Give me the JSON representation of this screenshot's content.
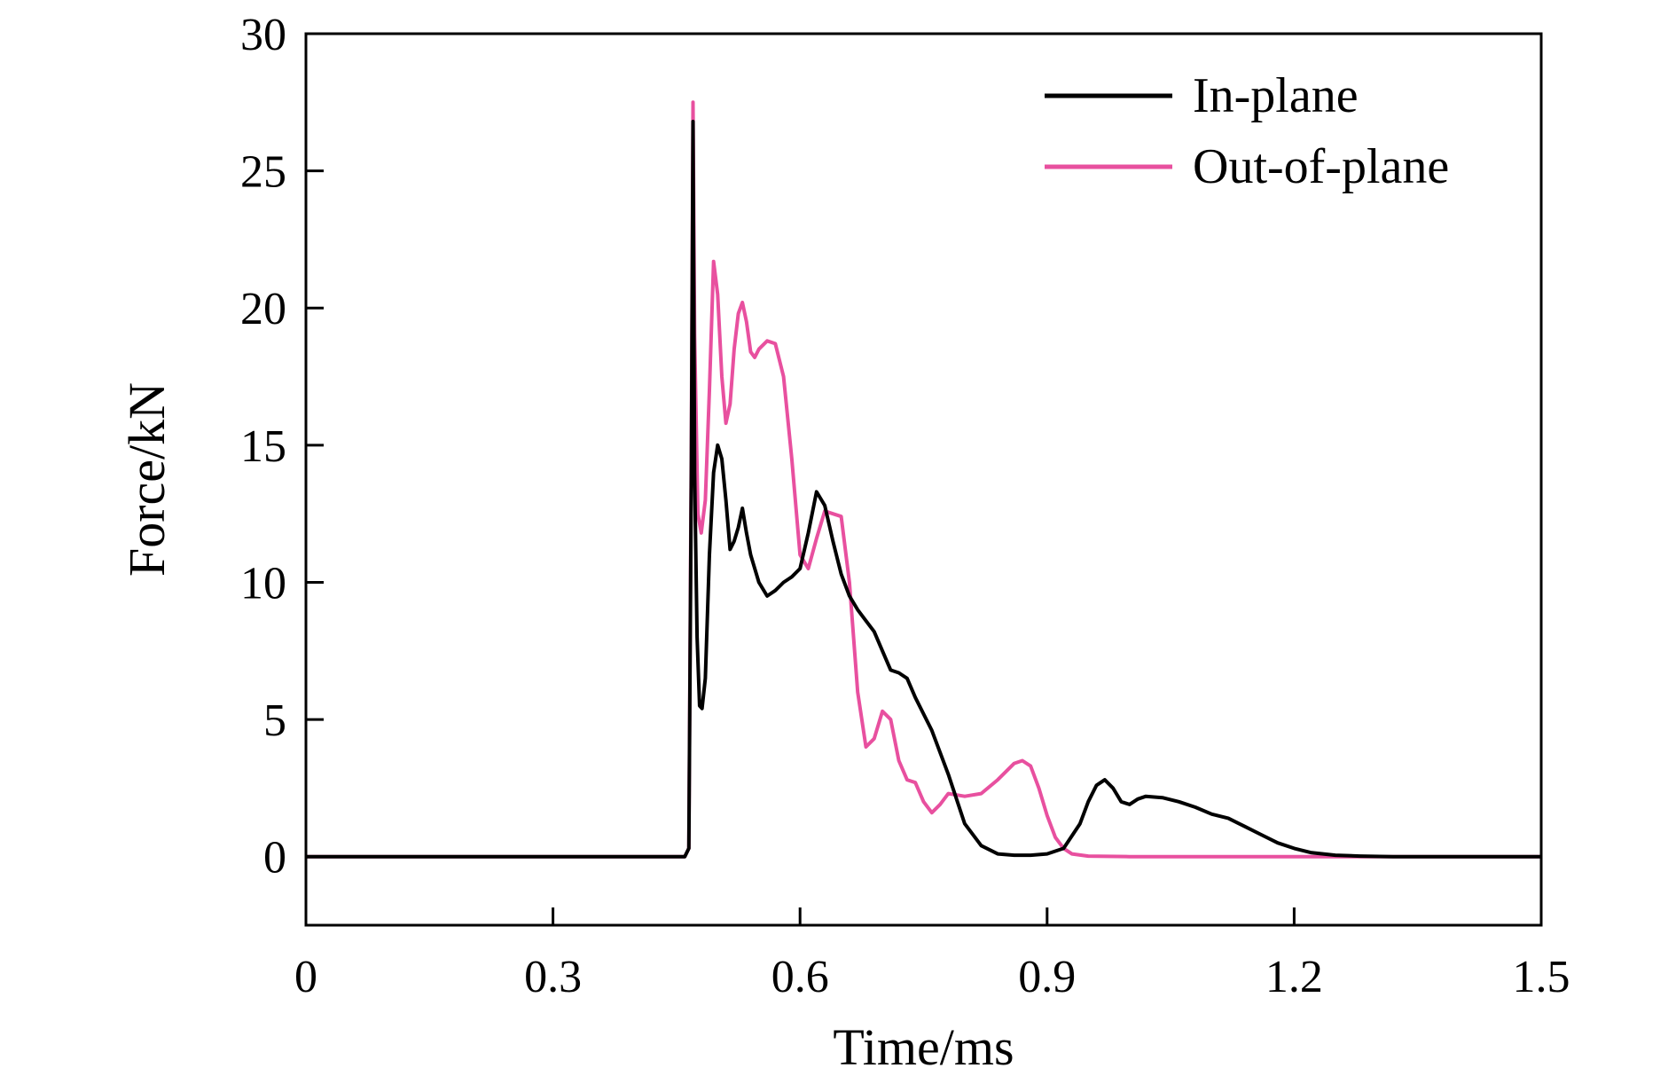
{
  "chart_data": {
    "type": "line",
    "title": "",
    "xlabel": "Time/ms",
    "ylabel": "Force/kN",
    "xlim": [
      0,
      1.5
    ],
    "ylim": [
      -2.5,
      30
    ],
    "xticks": [
      0,
      0.3,
      0.6,
      0.9,
      1.2,
      1.5
    ],
    "xtick_labels": [
      "0",
      "0.3",
      "0.6",
      "0.9",
      "1.2",
      "1.5"
    ],
    "yticks": [
      0,
      5,
      10,
      15,
      20,
      25,
      30
    ],
    "ytick_labels": [
      "0",
      "5",
      "10",
      "15",
      "20",
      "25",
      "30"
    ],
    "grid": false,
    "legend_position": "top-right",
    "series": [
      {
        "name": "In-plane",
        "color": "#000000",
        "x": [
          0,
          0.3,
          0.46,
          0.465,
          0.468,
          0.47,
          0.472,
          0.475,
          0.478,
          0.481,
          0.485,
          0.49,
          0.495,
          0.5,
          0.505,
          0.51,
          0.515,
          0.52,
          0.525,
          0.53,
          0.535,
          0.54,
          0.55,
          0.56,
          0.57,
          0.58,
          0.59,
          0.6,
          0.61,
          0.62,
          0.63,
          0.64,
          0.65,
          0.66,
          0.67,
          0.68,
          0.69,
          0.7,
          0.71,
          0.72,
          0.73,
          0.74,
          0.75,
          0.76,
          0.78,
          0.8,
          0.82,
          0.84,
          0.86,
          0.88,
          0.9,
          0.92,
          0.94,
          0.95,
          0.96,
          0.97,
          0.98,
          0.99,
          1.0,
          1.01,
          1.02,
          1.04,
          1.06,
          1.08,
          1.1,
          1.12,
          1.14,
          1.16,
          1.18,
          1.2,
          1.22,
          1.25,
          1.28,
          1.32,
          1.4,
          1.5
        ],
        "y": [
          0,
          0,
          0,
          0.3,
          14,
          26.8,
          14,
          8,
          5.5,
          5.4,
          6.5,
          11,
          14,
          15,
          14.5,
          13,
          11.2,
          11.5,
          12,
          12.7,
          11.8,
          11,
          10,
          9.5,
          9.7,
          10,
          10.2,
          10.5,
          11.8,
          13.3,
          12.8,
          11.5,
          10.3,
          9.5,
          9,
          8.6,
          8.2,
          7.5,
          6.8,
          6.7,
          6.5,
          5.8,
          5.2,
          4.6,
          3,
          1.2,
          0.4,
          0.1,
          0.05,
          0.05,
          0.1,
          0.3,
          1.2,
          2.0,
          2.6,
          2.8,
          2.5,
          2.0,
          1.9,
          2.1,
          2.2,
          2.15,
          2.0,
          1.8,
          1.55,
          1.4,
          1.1,
          0.8,
          0.5,
          0.3,
          0.15,
          0.05,
          0.02,
          0,
          0,
          0
        ]
      },
      {
        "name": "Out-of-plane",
        "color": "#e8509f",
        "x": [
          0,
          0.3,
          0.46,
          0.465,
          0.468,
          0.47,
          0.472,
          0.476,
          0.48,
          0.485,
          0.49,
          0.495,
          0.5,
          0.505,
          0.51,
          0.515,
          0.52,
          0.525,
          0.53,
          0.535,
          0.54,
          0.545,
          0.55,
          0.56,
          0.57,
          0.58,
          0.59,
          0.6,
          0.61,
          0.62,
          0.63,
          0.64,
          0.65,
          0.66,
          0.67,
          0.68,
          0.69,
          0.7,
          0.71,
          0.72,
          0.73,
          0.74,
          0.75,
          0.76,
          0.77,
          0.78,
          0.8,
          0.82,
          0.84,
          0.86,
          0.87,
          0.88,
          0.89,
          0.9,
          0.91,
          0.92,
          0.93,
          0.95,
          1.0,
          1.2,
          1.5
        ],
        "y": [
          0,
          0,
          0,
          0.3,
          15,
          27.5,
          19,
          12.5,
          11.8,
          13,
          17,
          21.7,
          20.5,
          17.5,
          15.8,
          16.5,
          18.5,
          19.8,
          20.2,
          19.5,
          18.4,
          18.2,
          18.5,
          18.8,
          18.7,
          17.5,
          14.5,
          11,
          10.5,
          11.6,
          12.6,
          12.5,
          12.4,
          10,
          6,
          4,
          4.3,
          5.3,
          5,
          3.5,
          2.8,
          2.7,
          2.0,
          1.6,
          1.9,
          2.3,
          2.2,
          2.3,
          2.8,
          3.4,
          3.5,
          3.3,
          2.5,
          1.5,
          0.7,
          0.3,
          0.1,
          0.02,
          0,
          0,
          0
        ]
      }
    ]
  }
}
